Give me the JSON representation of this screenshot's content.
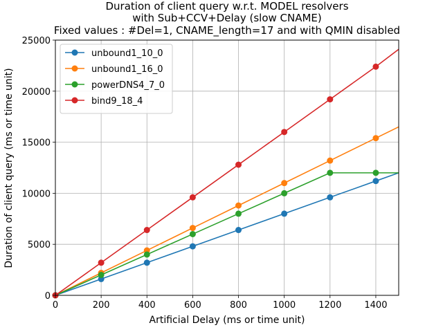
{
  "chart_data": {
    "type": "line",
    "title_lines": [
      "Duration of client query w.r.t. MODEL resolvers",
      "with Sub+CCV+Delay (slow CNAME)",
      "Fixed values : #Del=1, CNAME_length=17 and  with QMIN disabled"
    ],
    "xlabel": "Artificial Delay (ms or time unit)",
    "ylabel": "Duration of client query (ms or time unit)",
    "xlim": [
      0,
      1500
    ],
    "ylim": [
      0,
      25000
    ],
    "xticks": [
      0,
      200,
      400,
      600,
      800,
      1000,
      1200,
      1400
    ],
    "yticks": [
      0,
      5000,
      10000,
      15000,
      20000,
      25000
    ],
    "grid": true,
    "legend_position": "top-left",
    "series": [
      {
        "name": "unbound1_10_0",
        "color": "#1f77b4",
        "x": [
          0,
          200,
          400,
          600,
          800,
          1000,
          1200,
          1400,
          1500
        ],
        "y": [
          0,
          1600,
          3200,
          4800,
          6400,
          8000,
          9600,
          11200,
          12000
        ],
        "markers": [
          true,
          true,
          true,
          true,
          true,
          true,
          true,
          true,
          false
        ]
      },
      {
        "name": "unbound1_16_0",
        "color": "#ff7f0e",
        "x": [
          0,
          200,
          400,
          600,
          800,
          1000,
          1200,
          1400,
          1500
        ],
        "y": [
          0,
          2200,
          4400,
          6600,
          8800,
          11000,
          13200,
          15400,
          16500
        ],
        "markers": [
          true,
          true,
          true,
          true,
          true,
          true,
          true,
          true,
          false
        ]
      },
      {
        "name": "powerDNS4_7_0",
        "color": "#2ca02c",
        "x": [
          0,
          200,
          400,
          600,
          800,
          1000,
          1200,
          1400,
          1500
        ],
        "y": [
          0,
          2000,
          4000,
          6000,
          8000,
          10000,
          12000,
          12000,
          12000
        ],
        "markers": [
          true,
          true,
          true,
          true,
          true,
          true,
          true,
          true,
          false
        ]
      },
      {
        "name": "bind9_18_4",
        "color": "#d62728",
        "x": [
          0,
          200,
          400,
          600,
          800,
          1000,
          1200,
          1400,
          1500
        ],
        "y": [
          0,
          3200,
          6400,
          9600,
          12800,
          16000,
          19200,
          22400,
          24100
        ],
        "markers": [
          true,
          true,
          true,
          true,
          true,
          true,
          true,
          true,
          false
        ]
      }
    ]
  }
}
